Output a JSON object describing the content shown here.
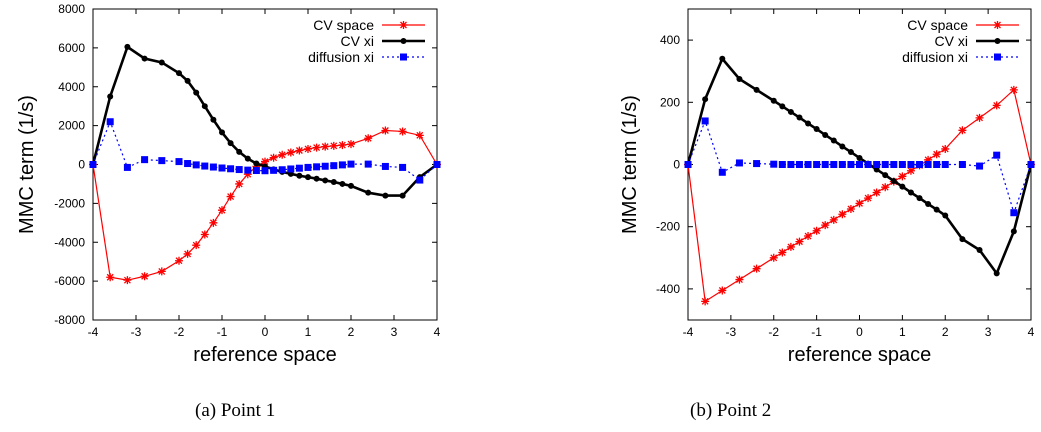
{
  "chart_data": [
    {
      "type": "line",
      "caption": "(a)  Point 1",
      "xlabel": "reference space",
      "ylabel": "MMC term (1/s)",
      "xlim": [
        -4,
        4
      ],
      "ylim": [
        -8000,
        8000
      ],
      "xticks": [
        "-4",
        "-3",
        "-2",
        "-1",
        "0",
        "1",
        "2",
        "3",
        "4"
      ],
      "yticks": [
        "-8000",
        "-6000",
        "-4000",
        "-2000",
        "0",
        "2000",
        "4000",
        "6000",
        "8000"
      ],
      "grid": false,
      "legend_position": "top-right",
      "series": [
        {
          "name": "CV space",
          "color": "#ff0000",
          "marker": "star",
          "line_style": "solid",
          "points": [
            [
              -4,
              0
            ],
            [
              -3.6,
              -5800
            ],
            [
              -3.2,
              -5950
            ],
            [
              -2.8,
              -5750
            ],
            [
              -2.4,
              -5500
            ],
            [
              -2.0,
              -4950
            ],
            [
              -1.8,
              -4600
            ],
            [
              -1.6,
              -4150
            ],
            [
              -1.4,
              -3600
            ],
            [
              -1.2,
              -3000
            ],
            [
              -1.0,
              -2350
            ],
            [
              -0.8,
              -1650
            ],
            [
              -0.6,
              -1000
            ],
            [
              -0.4,
              -500
            ],
            [
              -0.2,
              -100
            ],
            [
              0.0,
              150
            ],
            [
              0.2,
              350
            ],
            [
              0.4,
              500
            ],
            [
              0.6,
              620
            ],
            [
              0.8,
              720
            ],
            [
              1.0,
              800
            ],
            [
              1.2,
              870
            ],
            [
              1.4,
              920
            ],
            [
              1.6,
              960
            ],
            [
              1.8,
              1000
            ],
            [
              2.0,
              1050
            ],
            [
              2.4,
              1350
            ],
            [
              2.8,
              1750
            ],
            [
              3.2,
              1700
            ],
            [
              3.6,
              1500
            ],
            [
              4,
              0
            ]
          ]
        },
        {
          "name": "CV xi",
          "color": "#000000",
          "marker": "circle",
          "line_style": "solid",
          "points": [
            [
              -4,
              0
            ],
            [
              -3.6,
              3500
            ],
            [
              -3.2,
              6050
            ],
            [
              -2.8,
              5450
            ],
            [
              -2.4,
              5250
            ],
            [
              -2.0,
              4700
            ],
            [
              -1.8,
              4300
            ],
            [
              -1.6,
              3700
            ],
            [
              -1.4,
              3000
            ],
            [
              -1.2,
              2300
            ],
            [
              -1.0,
              1650
            ],
            [
              -0.8,
              1100
            ],
            [
              -0.6,
              650
            ],
            [
              -0.4,
              300
            ],
            [
              -0.2,
              50
            ],
            [
              0.0,
              -100
            ],
            [
              0.2,
              -250
            ],
            [
              0.4,
              -380
            ],
            [
              0.6,
              -480
            ],
            [
              0.8,
              -580
            ],
            [
              1.0,
              -650
            ],
            [
              1.2,
              -730
            ],
            [
              1.4,
              -820
            ],
            [
              1.6,
              -900
            ],
            [
              1.8,
              -1000
            ],
            [
              2.0,
              -1100
            ],
            [
              2.4,
              -1450
            ],
            [
              2.8,
              -1600
            ],
            [
              3.2,
              -1600
            ],
            [
              3.6,
              -650
            ],
            [
              4,
              0
            ]
          ]
        },
        {
          "name": "diffusion xi",
          "color": "#0000ff",
          "marker": "square",
          "line_style": "dotted",
          "points": [
            [
              -4,
              0
            ],
            [
              -3.6,
              2200
            ],
            [
              -3.2,
              -150
            ],
            [
              -2.8,
              250
            ],
            [
              -2.4,
              200
            ],
            [
              -2.0,
              150
            ],
            [
              -1.8,
              50
            ],
            [
              -1.6,
              -20
            ],
            [
              -1.4,
              -80
            ],
            [
              -1.2,
              -130
            ],
            [
              -1.0,
              -180
            ],
            [
              -0.8,
              -220
            ],
            [
              -0.6,
              -260
            ],
            [
              -0.4,
              -290
            ],
            [
              -0.2,
              -310
            ],
            [
              0.0,
              -320
            ],
            [
              0.2,
              -300
            ],
            [
              0.4,
              -270
            ],
            [
              0.6,
              -230
            ],
            [
              0.8,
              -190
            ],
            [
              1.0,
              -150
            ],
            [
              1.2,
              -120
            ],
            [
              1.4,
              -90
            ],
            [
              1.6,
              -60
            ],
            [
              1.8,
              -20
            ],
            [
              2.0,
              20
            ],
            [
              2.4,
              20
            ],
            [
              2.8,
              -100
            ],
            [
              3.2,
              -150
            ],
            [
              3.6,
              -800
            ],
            [
              4,
              0
            ]
          ]
        }
      ]
    },
    {
      "type": "line",
      "caption": "(b)  Point 2",
      "xlabel": "reference space",
      "ylabel": "MMC term (1/s)",
      "xlim": [
        -4,
        4
      ],
      "ylim": [
        -500,
        500
      ],
      "xticks": [
        "-4",
        "-3",
        "-2",
        "-1",
        "0",
        "1",
        "2",
        "3",
        "4"
      ],
      "yticks": [
        "-400",
        "-200",
        "0",
        "200",
        "400"
      ],
      "grid": false,
      "legend_position": "top-right",
      "series": [
        {
          "name": "CV space",
          "color": "#ff0000",
          "marker": "star",
          "line_style": "solid",
          "points": [
            [
              -4,
              0
            ],
            [
              -3.6,
              -440
            ],
            [
              -3.2,
              -405
            ],
            [
              -2.8,
              -370
            ],
            [
              -2.4,
              -335
            ],
            [
              -2.0,
              -300
            ],
            [
              -1.8,
              -283
            ],
            [
              -1.6,
              -265
            ],
            [
              -1.4,
              -248
            ],
            [
              -1.2,
              -230
            ],
            [
              -1.0,
              -213
            ],
            [
              -0.8,
              -195
            ],
            [
              -0.6,
              -178
            ],
            [
              -0.4,
              -160
            ],
            [
              -0.2,
              -143
            ],
            [
              0.0,
              -125
            ],
            [
              0.2,
              -108
            ],
            [
              0.4,
              -90
            ],
            [
              0.6,
              -73
            ],
            [
              0.8,
              -55
            ],
            [
              1.0,
              -38
            ],
            [
              1.2,
              -20
            ],
            [
              1.4,
              -3
            ],
            [
              1.6,
              15
            ],
            [
              1.8,
              33
            ],
            [
              2.0,
              50
            ],
            [
              2.4,
              110
            ],
            [
              2.8,
              150
            ],
            [
              3.2,
              190
            ],
            [
              3.6,
              240
            ],
            [
              4,
              0
            ]
          ]
        },
        {
          "name": "CV xi",
          "color": "#000000",
          "marker": "circle",
          "line_style": "solid",
          "points": [
            [
              -4,
              0
            ],
            [
              -3.6,
              210
            ],
            [
              -3.2,
              340
            ],
            [
              -2.8,
              275
            ],
            [
              -2.4,
              240
            ],
            [
              -2.0,
              205
            ],
            [
              -1.8,
              187
            ],
            [
              -1.6,
              169
            ],
            [
              -1.4,
              151
            ],
            [
              -1.2,
              132
            ],
            [
              -1.0,
              114
            ],
            [
              -0.8,
              95
            ],
            [
              -0.6,
              77
            ],
            [
              -0.4,
              58
            ],
            [
              -0.2,
              40
            ],
            [
              0.0,
              21
            ],
            [
              0.2,
              3
            ],
            [
              0.4,
              -16
            ],
            [
              0.6,
              -34
            ],
            [
              0.8,
              -53
            ],
            [
              1.0,
              -71
            ],
            [
              1.2,
              -90
            ],
            [
              1.4,
              -108
            ],
            [
              1.6,
              -127
            ],
            [
              1.8,
              -145
            ],
            [
              2.0,
              -164
            ],
            [
              2.4,
              -240
            ],
            [
              2.8,
              -275
            ],
            [
              3.2,
              -350
            ],
            [
              3.6,
              -215
            ],
            [
              4,
              0
            ]
          ]
        },
        {
          "name": "diffusion xi",
          "color": "#0000ff",
          "marker": "square",
          "line_style": "dotted",
          "points": [
            [
              -4,
              0
            ],
            [
              -3.6,
              140
            ],
            [
              -3.2,
              -25
            ],
            [
              -2.8,
              5
            ],
            [
              -2.4,
              3
            ],
            [
              -2.0,
              1
            ],
            [
              -1.8,
              0
            ],
            [
              -1.6,
              0
            ],
            [
              -1.4,
              0
            ],
            [
              -1.2,
              0
            ],
            [
              -1.0,
              0
            ],
            [
              -0.8,
              0
            ],
            [
              -0.6,
              0
            ],
            [
              -0.4,
              0
            ],
            [
              -0.2,
              0
            ],
            [
              0.0,
              0
            ],
            [
              0.2,
              0
            ],
            [
              0.4,
              0
            ],
            [
              0.6,
              0
            ],
            [
              0.8,
              0
            ],
            [
              1.0,
              0
            ],
            [
              1.2,
              0
            ],
            [
              1.4,
              0
            ],
            [
              1.6,
              0
            ],
            [
              1.8,
              0
            ],
            [
              2.0,
              0
            ],
            [
              2.4,
              0
            ],
            [
              2.8,
              -5
            ],
            [
              3.2,
              30
            ],
            [
              3.6,
              -155
            ],
            [
              4,
              0
            ]
          ]
        }
      ]
    }
  ]
}
